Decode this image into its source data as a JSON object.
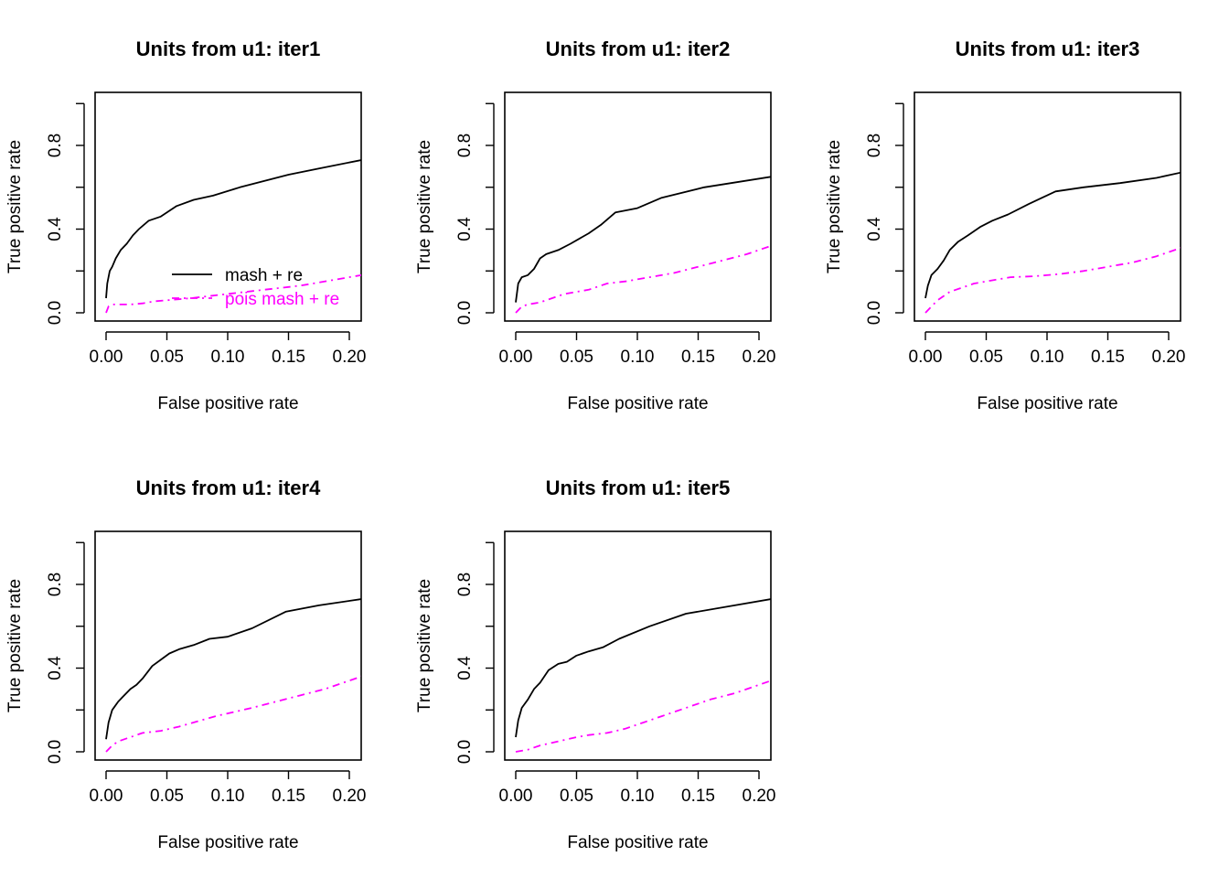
{
  "chart_data": [
    {
      "type": "line",
      "title": "Units from u1: iter1",
      "xlabel": "False positive rate",
      "ylabel": "True positive rate",
      "xlim": [
        0,
        0.21
      ],
      "ylim": [
        0,
        1.0
      ],
      "xticks": [
        "0.00",
        "0.05",
        "0.10",
        "0.15",
        "0.20"
      ],
      "yticks": [
        "0.0",
        "0.4",
        "0.8"
      ],
      "xtick_values": [
        0,
        0.05,
        0.1,
        0.15,
        0.2
      ],
      "ytick_values": [
        0,
        0.4,
        0.8
      ],
      "legend": {
        "position": "bottom-right",
        "entries": [
          "mash + re",
          "pois mash + re"
        ]
      },
      "series": [
        {
          "name": "mash + re",
          "color": "#000000",
          "dash": "solid",
          "x": [
            0.0,
            0.001,
            0.003,
            0.005,
            0.008,
            0.012,
            0.017,
            0.022,
            0.027,
            0.035,
            0.045,
            0.058,
            0.072,
            0.088,
            0.11,
            0.13,
            0.15,
            0.175,
            0.21
          ],
          "y": [
            0.07,
            0.14,
            0.2,
            0.22,
            0.26,
            0.3,
            0.33,
            0.37,
            0.4,
            0.44,
            0.46,
            0.51,
            0.54,
            0.56,
            0.6,
            0.63,
            0.66,
            0.69,
            0.73
          ]
        },
        {
          "name": "pois mash + re",
          "color": "#ff00ff",
          "dash": "dashdot",
          "x": [
            0.0,
            0.002,
            0.005,
            0.01,
            0.02,
            0.03,
            0.04,
            0.05,
            0.07,
            0.1,
            0.13,
            0.16,
            0.19,
            0.21
          ],
          "y": [
            0.0,
            0.03,
            0.04,
            0.04,
            0.04,
            0.045,
            0.055,
            0.06,
            0.07,
            0.09,
            0.11,
            0.13,
            0.16,
            0.18
          ]
        }
      ]
    },
    {
      "type": "line",
      "title": "Units from u1: iter2",
      "xlabel": "False positive rate",
      "ylabel": "True positive rate",
      "xlim": [
        0,
        0.21
      ],
      "ylim": [
        0,
        1.0
      ],
      "xticks": [
        "0.00",
        "0.05",
        "0.10",
        "0.15",
        "0.20"
      ],
      "yticks": [
        "0.0",
        "0.4",
        "0.8"
      ],
      "xtick_values": [
        0,
        0.05,
        0.1,
        0.15,
        0.2
      ],
      "ytick_values": [
        0,
        0.4,
        0.8
      ],
      "series": [
        {
          "name": "mash + re",
          "color": "#000000",
          "dash": "solid",
          "x": [
            0.0,
            0.002,
            0.005,
            0.01,
            0.015,
            0.02,
            0.025,
            0.035,
            0.045,
            0.06,
            0.07,
            0.082,
            0.1,
            0.12,
            0.155,
            0.21
          ],
          "y": [
            0.05,
            0.14,
            0.17,
            0.18,
            0.21,
            0.26,
            0.28,
            0.3,
            0.33,
            0.38,
            0.42,
            0.48,
            0.5,
            0.55,
            0.6,
            0.65
          ]
        },
        {
          "name": "pois mash + re",
          "color": "#ff00ff",
          "dash": "dashdot",
          "x": [
            0.0,
            0.005,
            0.01,
            0.02,
            0.03,
            0.04,
            0.05,
            0.06,
            0.075,
            0.09,
            0.11,
            0.13,
            0.15,
            0.17,
            0.19,
            0.21
          ],
          "y": [
            0.0,
            0.03,
            0.04,
            0.05,
            0.07,
            0.09,
            0.1,
            0.11,
            0.14,
            0.15,
            0.17,
            0.19,
            0.22,
            0.25,
            0.28,
            0.32
          ]
        }
      ]
    },
    {
      "type": "line",
      "title": "Units from u1: iter3",
      "xlabel": "False positive rate",
      "ylabel": "True positive rate",
      "xlim": [
        0,
        0.21
      ],
      "ylim": [
        0,
        1.0
      ],
      "xticks": [
        "0.00",
        "0.05",
        "0.10",
        "0.15",
        "0.20"
      ],
      "yticks": [
        "0.0",
        "0.4",
        "0.8"
      ],
      "xtick_values": [
        0,
        0.05,
        0.1,
        0.15,
        0.2
      ],
      "ytick_values": [
        0,
        0.4,
        0.8
      ],
      "series": [
        {
          "name": "mash + re",
          "color": "#000000",
          "dash": "solid",
          "x": [
            0.0,
            0.002,
            0.005,
            0.01,
            0.015,
            0.02,
            0.027,
            0.035,
            0.045,
            0.055,
            0.068,
            0.085,
            0.107,
            0.13,
            0.16,
            0.19,
            0.21
          ],
          "y": [
            0.07,
            0.13,
            0.18,
            0.21,
            0.25,
            0.3,
            0.34,
            0.37,
            0.41,
            0.44,
            0.47,
            0.52,
            0.58,
            0.6,
            0.62,
            0.645,
            0.67
          ]
        },
        {
          "name": "pois mash + re",
          "color": "#ff00ff",
          "dash": "dashdot",
          "x": [
            0.0,
            0.005,
            0.01,
            0.02,
            0.03,
            0.04,
            0.055,
            0.07,
            0.09,
            0.11,
            0.13,
            0.15,
            0.17,
            0.19,
            0.21
          ],
          "y": [
            0.0,
            0.03,
            0.06,
            0.1,
            0.12,
            0.14,
            0.155,
            0.17,
            0.175,
            0.185,
            0.2,
            0.22,
            0.24,
            0.27,
            0.31
          ]
        }
      ]
    },
    {
      "type": "line",
      "title": "Units from u1: iter4",
      "xlabel": "False positive rate",
      "ylabel": "True positive rate",
      "xlim": [
        0,
        0.21
      ],
      "ylim": [
        0,
        1.0
      ],
      "xticks": [
        "0.00",
        "0.05",
        "0.10",
        "0.15",
        "0.20"
      ],
      "yticks": [
        "0.0",
        "0.4",
        "0.8"
      ],
      "xtick_values": [
        0,
        0.05,
        0.1,
        0.15,
        0.2
      ],
      "ytick_values": [
        0,
        0.4,
        0.8
      ],
      "series": [
        {
          "name": "mash + re",
          "color": "#000000",
          "dash": "solid",
          "x": [
            0.0,
            0.002,
            0.005,
            0.01,
            0.015,
            0.02,
            0.025,
            0.03,
            0.038,
            0.045,
            0.052,
            0.06,
            0.072,
            0.085,
            0.1,
            0.12,
            0.148,
            0.175,
            0.21
          ],
          "y": [
            0.06,
            0.14,
            0.2,
            0.24,
            0.27,
            0.3,
            0.32,
            0.35,
            0.41,
            0.44,
            0.47,
            0.49,
            0.51,
            0.54,
            0.55,
            0.59,
            0.67,
            0.7,
            0.73
          ]
        },
        {
          "name": "pois mash + re",
          "color": "#ff00ff",
          "dash": "dashdot",
          "x": [
            0.0,
            0.005,
            0.01,
            0.02,
            0.03,
            0.045,
            0.06,
            0.075,
            0.09,
            0.105,
            0.12,
            0.14,
            0.16,
            0.18,
            0.21
          ],
          "y": [
            0.0,
            0.03,
            0.05,
            0.07,
            0.09,
            0.1,
            0.12,
            0.145,
            0.17,
            0.19,
            0.21,
            0.24,
            0.27,
            0.3,
            0.36
          ]
        }
      ]
    },
    {
      "type": "line",
      "title": "Units from u1: iter5",
      "xlabel": "False positive rate",
      "ylabel": "True positive rate",
      "xlim": [
        0,
        0.21
      ],
      "ylim": [
        0,
        1.0
      ],
      "xticks": [
        "0.00",
        "0.05",
        "0.10",
        "0.15",
        "0.20"
      ],
      "yticks": [
        "0.0",
        "0.4",
        "0.8"
      ],
      "xtick_values": [
        0,
        0.05,
        0.1,
        0.15,
        0.2
      ],
      "ytick_values": [
        0,
        0.4,
        0.8
      ],
      "series": [
        {
          "name": "mash + re",
          "color": "#000000",
          "dash": "solid",
          "x": [
            0.0,
            0.002,
            0.005,
            0.01,
            0.015,
            0.02,
            0.027,
            0.035,
            0.042,
            0.05,
            0.06,
            0.072,
            0.085,
            0.11,
            0.14,
            0.18,
            0.21
          ],
          "y": [
            0.07,
            0.15,
            0.21,
            0.25,
            0.3,
            0.33,
            0.39,
            0.42,
            0.43,
            0.46,
            0.48,
            0.5,
            0.54,
            0.6,
            0.66,
            0.7,
            0.73
          ]
        },
        {
          "name": "pois mash + re",
          "color": "#ff00ff",
          "dash": "dashdot",
          "x": [
            0.0,
            0.01,
            0.02,
            0.035,
            0.05,
            0.06,
            0.075,
            0.09,
            0.105,
            0.12,
            0.14,
            0.16,
            0.18,
            0.21
          ],
          "y": [
            0.0,
            0.01,
            0.03,
            0.05,
            0.07,
            0.08,
            0.09,
            0.11,
            0.14,
            0.17,
            0.21,
            0.25,
            0.28,
            0.34
          ]
        }
      ]
    }
  ]
}
